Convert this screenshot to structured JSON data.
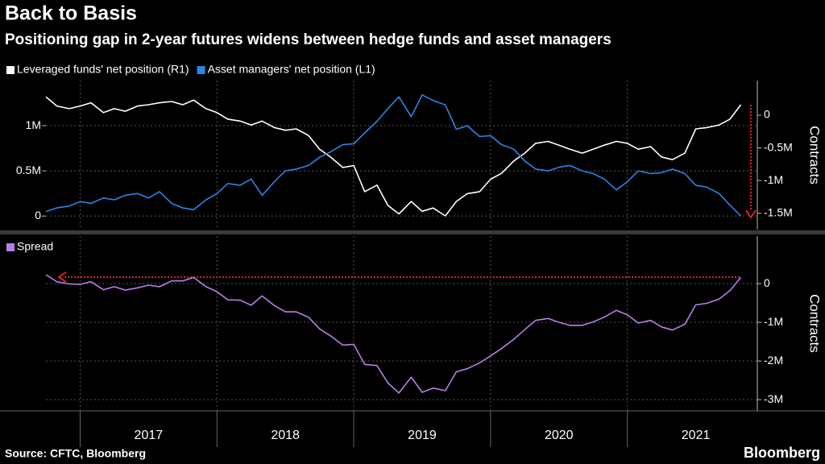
{
  "title": "Back to Basis",
  "subtitle": "Positioning gap in 2-year futures widens between hedge funds and asset managers",
  "source": "Source: CFTC, Bloomberg",
  "brand": "Bloomberg",
  "chart_data": [
    {
      "type": "line",
      "x": [
        2016.75,
        2016.83,
        2016.92,
        2017,
        2017.08,
        2017.17,
        2017.25,
        2017.33,
        2017.42,
        2017.5,
        2017.58,
        2017.67,
        2017.75,
        2017.83,
        2017.92,
        2018,
        2018.08,
        2018.17,
        2018.25,
        2018.33,
        2018.42,
        2018.5,
        2018.58,
        2018.67,
        2018.75,
        2018.83,
        2018.92,
        2019,
        2019.08,
        2019.17,
        2019.25,
        2019.33,
        2019.42,
        2019.5,
        2019.58,
        2019.67,
        2019.75,
        2019.83,
        2019.92,
        2020,
        2020.08,
        2020.17,
        2020.25,
        2020.33,
        2020.42,
        2020.5,
        2020.58,
        2020.67,
        2020.75,
        2020.83,
        2020.92,
        2021,
        2021.08,
        2021.17,
        2021.25,
        2021.33,
        2021.42,
        2021.5,
        2021.58,
        2021.67,
        2021.75,
        2021.83
      ],
      "xlim": [
        2016.75,
        2021.95
      ],
      "xticks": [
        2017,
        2018,
        2019,
        2020,
        2021
      ],
      "ylim": [
        -150000,
        1500000
      ],
      "yticks": [
        0,
        {
          "value": 500000,
          "label": "0.5M"
        },
        {
          "value": 1000000,
          "label": "1M"
        }
      ],
      "y2lim": [
        -1750000,
        530000
      ],
      "y2ticks": [
        0,
        {
          "value": -500000,
          "label": "-0.5M"
        },
        {
          "value": -1000000,
          "label": "-1M"
        },
        {
          "value": -1500000,
          "label": "-1.5M"
        }
      ],
      "y2label": "Contracts",
      "grid": true,
      "legend": "top-left",
      "series": [
        {
          "name": "Leveraged funds' net position (R1)",
          "color": "#ffffff",
          "axis": "y2",
          "values": [
            280000,
            140000,
            100000,
            140000,
            190000,
            40000,
            100000,
            60000,
            140000,
            160000,
            190000,
            210000,
            160000,
            230000,
            100000,
            40000,
            -60000,
            -90000,
            -150000,
            -90000,
            -190000,
            -230000,
            -210000,
            -310000,
            -520000,
            -640000,
            -800000,
            -770000,
            -1170000,
            -1070000,
            -1380000,
            -1510000,
            -1320000,
            -1470000,
            -1420000,
            -1540000,
            -1320000,
            -1200000,
            -1170000,
            -980000,
            -890000,
            -700000,
            -580000,
            -430000,
            -400000,
            -460000,
            -520000,
            -580000,
            -520000,
            -460000,
            -400000,
            -430000,
            -520000,
            -480000,
            -640000,
            -680000,
            -580000,
            -210000,
            -190000,
            -150000,
            -60000,
            160000
          ]
        },
        {
          "name": "Asset managers' net position (L1)",
          "color": "#2d83e6",
          "values": [
            50000,
            90000,
            110000,
            160000,
            140000,
            200000,
            180000,
            230000,
            250000,
            200000,
            270000,
            140000,
            90000,
            70000,
            180000,
            250000,
            360000,
            340000,
            410000,
            230000,
            380000,
            500000,
            520000,
            560000,
            650000,
            710000,
            790000,
            800000,
            920000,
            1050000,
            1190000,
            1320000,
            1100000,
            1340000,
            1280000,
            1230000,
            960000,
            1000000,
            880000,
            890000,
            790000,
            740000,
            610000,
            520000,
            500000,
            540000,
            560000,
            500000,
            470000,
            410000,
            290000,
            380000,
            500000,
            470000,
            480000,
            520000,
            470000,
            340000,
            320000,
            250000,
            120000,
            0
          ]
        }
      ]
    },
    {
      "type": "line",
      "x": [
        2016.75,
        2016.83,
        2016.92,
        2017,
        2017.08,
        2017.17,
        2017.25,
        2017.33,
        2017.42,
        2017.5,
        2017.58,
        2017.67,
        2017.75,
        2017.83,
        2017.92,
        2018,
        2018.08,
        2018.17,
        2018.25,
        2018.33,
        2018.42,
        2018.5,
        2018.58,
        2018.67,
        2018.75,
        2018.83,
        2018.92,
        2019,
        2019.08,
        2019.17,
        2019.25,
        2019.33,
        2019.42,
        2019.5,
        2019.58,
        2019.67,
        2019.75,
        2019.83,
        2019.92,
        2020,
        2020.08,
        2020.17,
        2020.25,
        2020.33,
        2020.42,
        2020.5,
        2020.58,
        2020.67,
        2020.75,
        2020.83,
        2020.92,
        2021,
        2021.08,
        2021.17,
        2021.25,
        2021.33,
        2021.42,
        2021.5,
        2021.58,
        2021.67,
        2021.75,
        2021.83
      ],
      "xlim": [
        2016.75,
        2021.95
      ],
      "xticks": [
        2017,
        2018,
        2019,
        2020,
        2021
      ],
      "ylim": [
        -3290000,
        1230000
      ],
      "yticks": [
        0,
        {
          "value": -1000000,
          "label": "-1M"
        },
        {
          "value": -2000000,
          "label": "-2M"
        },
        {
          "value": -3000000,
          "label": "-3M"
        }
      ],
      "y_axis": "right",
      "ylabel": "Contracts",
      "grid": true,
      "legend": "top-left",
      "series": [
        {
          "name": "Spread",
          "color": "#b57fe6",
          "values": [
            230000,
            50000,
            -10000,
            -20000,
            50000,
            -160000,
            -80000,
            -170000,
            -110000,
            -40000,
            -80000,
            70000,
            70000,
            160000,
            -80000,
            -210000,
            -420000,
            -430000,
            -560000,
            -320000,
            -570000,
            -730000,
            -730000,
            -870000,
            -1170000,
            -1350000,
            -1590000,
            -1570000,
            -2090000,
            -2120000,
            -2570000,
            -2830000,
            -2420000,
            -2810000,
            -2700000,
            -2770000,
            -2280000,
            -2200000,
            -2050000,
            -1870000,
            -1680000,
            -1440000,
            -1190000,
            -950000,
            -900000,
            -1000000,
            -1080000,
            -1080000,
            -990000,
            -870000,
            -690000,
            -810000,
            -1020000,
            -950000,
            -1120000,
            -1200000,
            -1050000,
            -550000,
            -510000,
            -400000,
            -180000,
            160000
          ]
        }
      ]
    }
  ]
}
